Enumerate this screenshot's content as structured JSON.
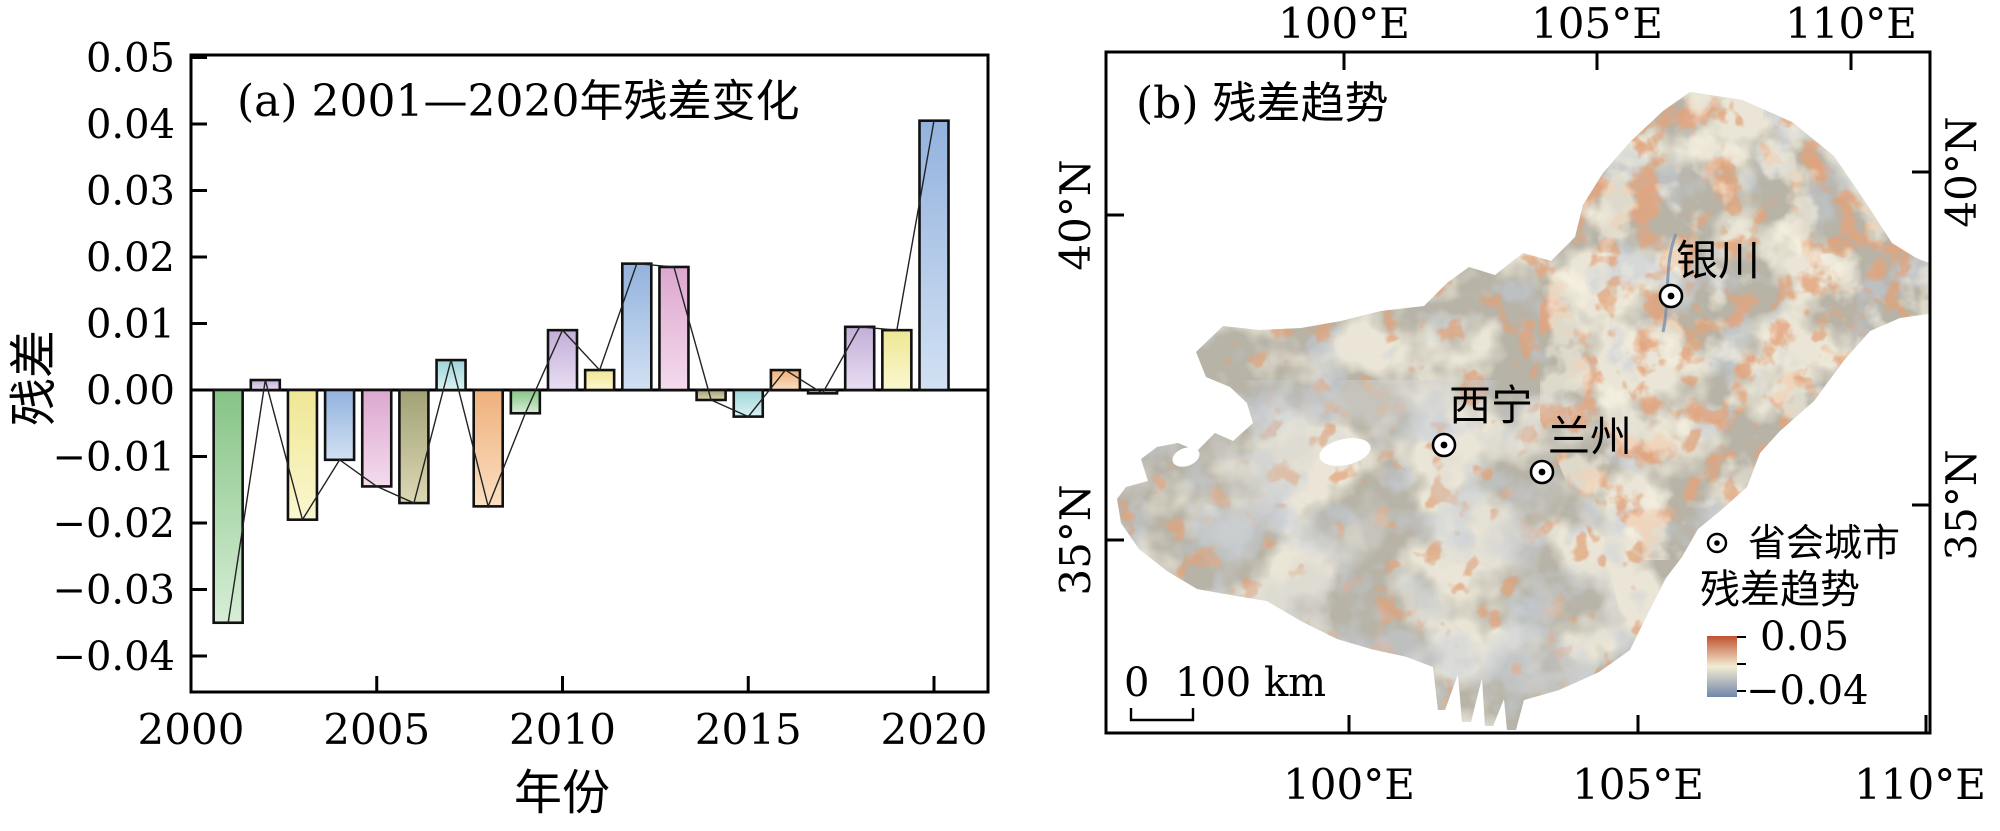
{
  "panel_a": {
    "title": "(a) 2001—2020年残差变化",
    "ylabel": "残差",
    "xlabel": "年份",
    "ytick_labels": [
      "0.05",
      "0.04",
      "0.03",
      "0.02",
      "0.01",
      "0.00",
      "−0.01",
      "−0.02",
      "−0.03",
      "−0.04"
    ],
    "xtick_labels": [
      "2000",
      "2005",
      "2010",
      "2015",
      "2020"
    ]
  },
  "chart_data": {
    "type": "bar",
    "title": "(a) 2001—2020年残差变化",
    "xlabel": "年份",
    "ylabel": "残差",
    "categories": [
      2001,
      2002,
      2003,
      2004,
      2005,
      2006,
      2007,
      2008,
      2009,
      2010,
      2011,
      2012,
      2013,
      2014,
      2015,
      2016,
      2017,
      2018,
      2019,
      2020
    ],
    "values": [
      -0.035,
      0.0015,
      -0.0195,
      -0.0105,
      -0.0145,
      -0.017,
      0.0045,
      -0.0175,
      -0.0035,
      0.009,
      0.003,
      0.019,
      0.0185,
      -0.0015,
      -0.004,
      0.003,
      -0.0005,
      0.0095,
      0.009,
      0.0405
    ],
    "line_overlay_same_as_bars": true,
    "ylim": [
      -0.0455,
      0.0505
    ],
    "xlim": [
      2000,
      2021.45
    ],
    "ytick_step": 0.01,
    "xticks": [
      2000,
      2005,
      2010,
      2015,
      2020
    ],
    "grid": "off",
    "bar_outline": "#111111",
    "line_color": "#222222",
    "bar_color_cycle": {
      "names": [
        "green",
        "lavender",
        "yellow",
        "blue",
        "pink",
        "olive",
        "cyan",
        "orange"
      ],
      "dark": [
        "#86c386",
        "#c2aed8",
        "#efe794",
        "#93b2de",
        "#dda7cf",
        "#a3a175",
        "#9dd5d8",
        "#efb07c"
      ],
      "light": [
        "#d6eed6",
        "#e8def2",
        "#fbf7d0",
        "#d2e1f3",
        "#f4dbec",
        "#dbd8b4",
        "#dbf2f3",
        "#fadfc2"
      ]
    }
  },
  "panel_b": {
    "title": "(b) 残差趋势",
    "top_axis_labels": [
      "100°E",
      "105°E",
      "110°E"
    ],
    "bottom_axis_labels": [
      "100°E",
      "105°E",
      "110°E"
    ],
    "left_axis_labels": [
      "40°N",
      "35°N"
    ],
    "right_axis_labels": [
      "40°N",
      "35°N"
    ],
    "cities": [
      {
        "name": "银川"
      },
      {
        "name": "西宁"
      },
      {
        "name": "兰州"
      }
    ],
    "legend": {
      "capital_city_label": "省会城市",
      "colorbar_title": "残差趋势",
      "colorbar_max": "0.05",
      "colorbar_min": "−0.04",
      "colorbar_colors": {
        "top": "#c0512f",
        "middle": "#f3ecd2",
        "bottom": "#7186aa"
      }
    },
    "scale_bar": {
      "label": "0  100 km"
    }
  }
}
